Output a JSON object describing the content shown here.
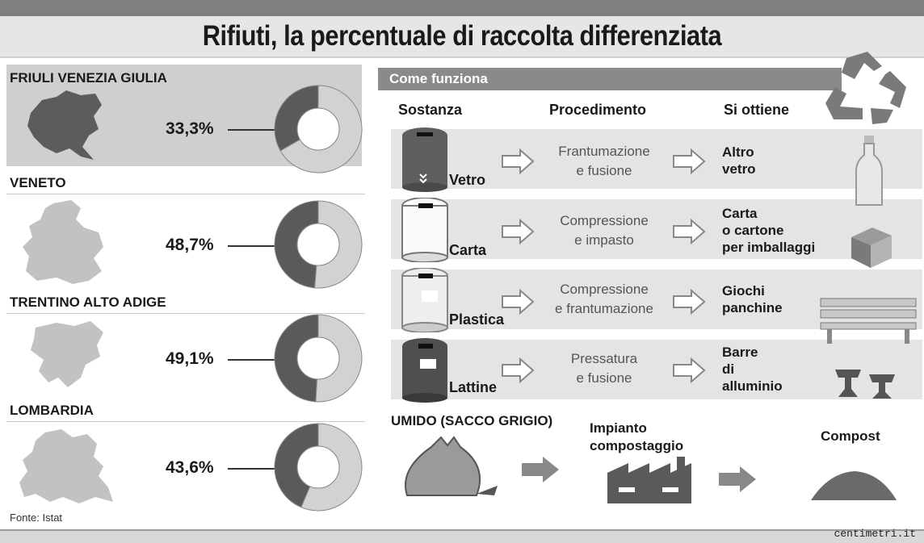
{
  "header": {
    "title": "Rifiuti, la percentuale di raccolta differenziata"
  },
  "colors": {
    "dark": "#5a5a5a",
    "light": "#d2d2d2",
    "map": "#6e6e6e",
    "map_light": "#bdbdbd",
    "panel": "#e4e4e4",
    "title_band": "#8a8a8a"
  },
  "chart_data": [
    {
      "type": "pie",
      "region": "FRIULI VENEZIA GIULIA",
      "label": "33,3%",
      "values": [
        33.3,
        66.7
      ],
      "donut": true
    },
    {
      "type": "pie",
      "region": "VENETO",
      "label": "48,7%",
      "values": [
        48.7,
        51.3
      ],
      "donut": true
    },
    {
      "type": "pie",
      "region": "TRENTINO ALTO ADIGE",
      "label": "49,1%",
      "values": [
        49.1,
        50.9
      ],
      "donut": true
    },
    {
      "type": "pie",
      "region": "LOMBARDIA",
      "label": "43,6%",
      "values": [
        43.6,
        56.4
      ],
      "donut": true
    }
  ],
  "how": {
    "title": "Come funziona",
    "headers": {
      "substance": "Sostanza",
      "process": "Procedimento",
      "result": "Si ottiene"
    },
    "rows": [
      {
        "bin": "Vetro",
        "process1": "Frantumazione",
        "process2": "e fusione",
        "result": [
          "Altro",
          "vetro"
        ],
        "icon": "bottle-icon"
      },
      {
        "bin": "Carta",
        "process1": "Compressione",
        "process2": "e impasto",
        "result": [
          "Carta",
          "o cartone",
          "per imballaggi"
        ],
        "icon": "box-icon"
      },
      {
        "bin": "Plastica",
        "process1": "Compressione",
        "process2": "e frantumazione",
        "result": [
          "Giochi",
          "panchine"
        ],
        "icon": "bench-icon"
      },
      {
        "bin": "Lattine",
        "process1": "Pressatura",
        "process2": "e fusione",
        "result": [
          "Barre",
          "di",
          "alluminio"
        ],
        "icon": "aluminium-bars-icon"
      }
    ]
  },
  "umido": {
    "title": "UMIDO (SACCO GRIGIO)",
    "plant": [
      "Impianto",
      "compostaggio"
    ],
    "compost": "Compost"
  },
  "source": "Fonte: Istat",
  "credit": "centimetri.it"
}
